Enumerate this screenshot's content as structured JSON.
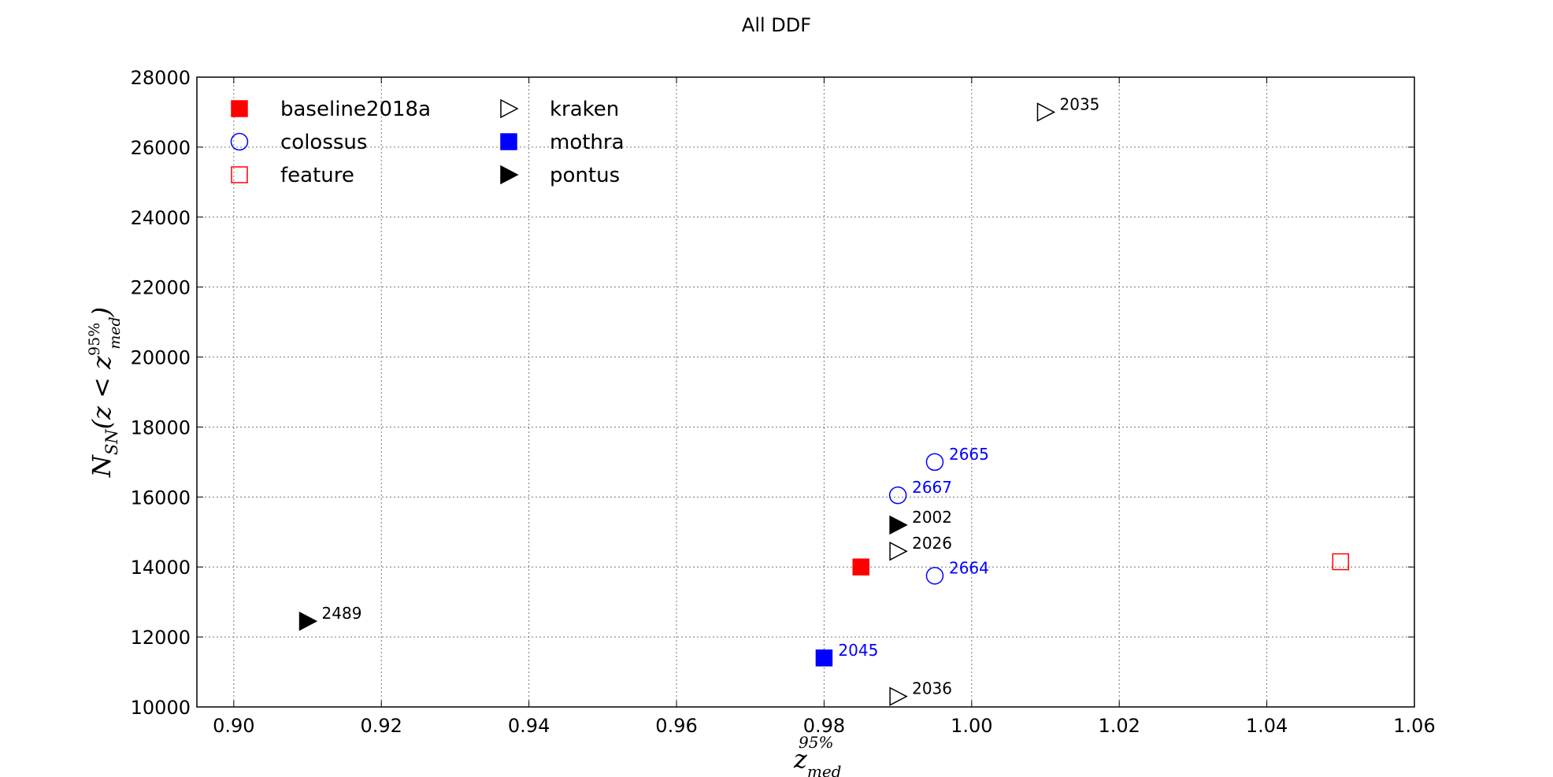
{
  "chart_data": {
    "type": "scatter",
    "title": "All DDF",
    "xlabel": {
      "base": "z",
      "sup": "95%",
      "sub": "med"
    },
    "ylabel": {
      "N": "N",
      "N_sub": "SN",
      "open": "(z < ",
      "z": "z",
      "z_sup": "95%",
      "z_sub": "med",
      "close": ")"
    },
    "xlim": [
      0.895,
      1.06
    ],
    "ylim": [
      10000,
      28000
    ],
    "xticks": [
      0.9,
      0.92,
      0.94,
      0.96,
      0.98,
      1.0,
      1.02,
      1.04,
      1.06
    ],
    "xtick_labels": [
      "0.90",
      "0.92",
      "0.94",
      "0.96",
      "0.98",
      "1.00",
      "1.02",
      "1.04",
      "1.06"
    ],
    "yticks": [
      10000,
      12000,
      14000,
      16000,
      18000,
      20000,
      22000,
      24000,
      26000,
      28000
    ],
    "ytick_labels": [
      "10000",
      "12000",
      "14000",
      "16000",
      "18000",
      "20000",
      "22000",
      "24000",
      "26000",
      "28000"
    ],
    "grid": true,
    "legend_position": "top-left",
    "series": [
      {
        "name": "baseline2018a",
        "marker": "square",
        "filled": true,
        "color": "#ff0000",
        "points": [
          {
            "x": 0.985,
            "y": 14000,
            "label": ""
          }
        ]
      },
      {
        "name": "colossus",
        "marker": "circle",
        "filled": false,
        "color": "#0000ff",
        "points": [
          {
            "x": 0.995,
            "y": 17000,
            "label": "2665"
          },
          {
            "x": 0.99,
            "y": 16050,
            "label": "2667"
          },
          {
            "x": 0.995,
            "y": 13750,
            "label": "2664"
          }
        ]
      },
      {
        "name": "feature",
        "marker": "square",
        "filled": false,
        "color": "#ff0000",
        "points": [
          {
            "x": 1.05,
            "y": 14150,
            "label": ""
          }
        ]
      },
      {
        "name": "kraken",
        "marker": "triangle-right",
        "filled": false,
        "color": "#000000",
        "points": [
          {
            "x": 1.01,
            "y": 27000,
            "label": "2035"
          },
          {
            "x": 0.99,
            "y": 14450,
            "label": "2026"
          },
          {
            "x": 0.99,
            "y": 10300,
            "label": "2036"
          }
        ]
      },
      {
        "name": "mothra",
        "marker": "square",
        "filled": true,
        "color": "#0000ff",
        "points": [
          {
            "x": 0.98,
            "y": 11400,
            "label": "2045"
          }
        ]
      },
      {
        "name": "pontus",
        "marker": "triangle-right",
        "filled": true,
        "color": "#000000",
        "points": [
          {
            "x": 0.99,
            "y": 15200,
            "label": "2002"
          },
          {
            "x": 0.91,
            "y": 12450,
            "label": "2489"
          }
        ]
      }
    ]
  }
}
